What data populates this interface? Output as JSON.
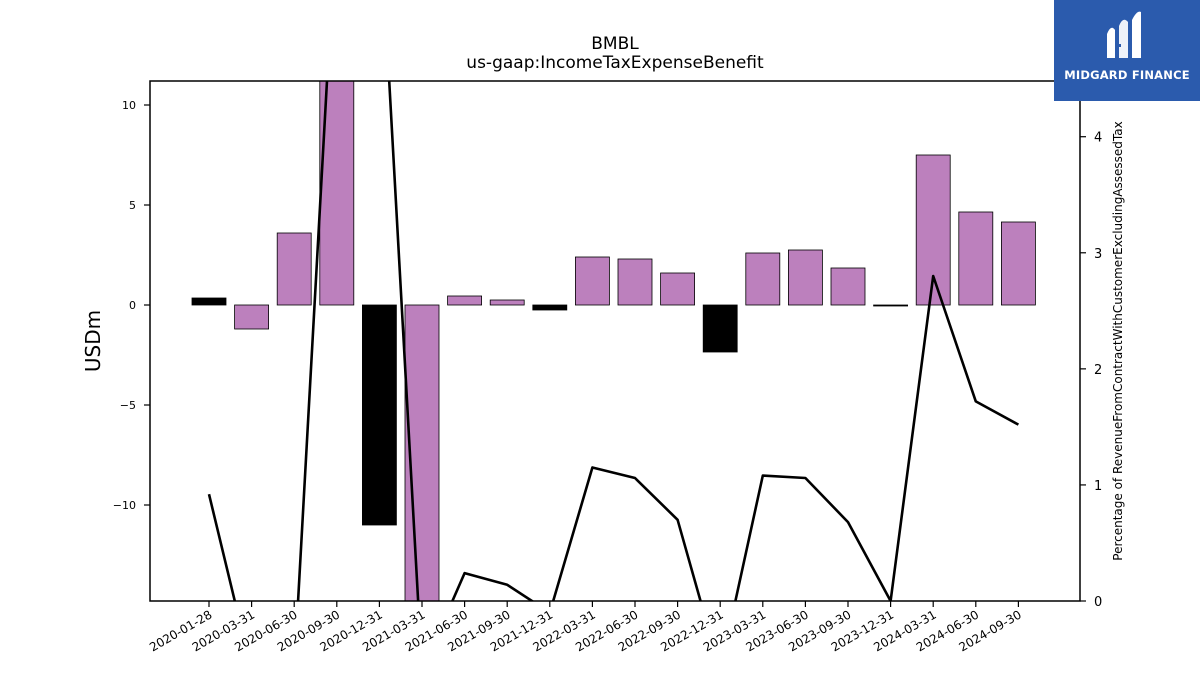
{
  "chart_data": {
    "type": "bar",
    "title": "BMBL",
    "subtitle": "us-gaap:IncomeTaxExpenseBenefit",
    "ylabel": "USDm",
    "y2label": "Percentage of RevenueFromContractWithCustomerExcludingAssessedTax",
    "ylim": [
      -14.8,
      11.2
    ],
    "y2lim": [
      0,
      4.48
    ],
    "yticks": [
      10,
      5,
      0,
      -5,
      -10
    ],
    "ytick_labels": [
      "10",
      "5",
      "0",
      "−5",
      "−10"
    ],
    "y2ticks": [
      0,
      1,
      2,
      3,
      4
    ],
    "categories": [
      "2020-01-28",
      "2020-03-31",
      "2020-06-30",
      "2020-09-30",
      "2020-12-31",
      "2021-03-31",
      "2021-06-30",
      "2021-09-30",
      "2021-12-31",
      "2022-03-31",
      "2022-06-30",
      "2022-09-30",
      "2022-12-31",
      "2023-03-31",
      "2023-06-30",
      "2023-09-30",
      "2023-12-31",
      "2024-03-31",
      "2024-06-30",
      "2024-09-30"
    ],
    "series": [
      {
        "type": "bar",
        "values": [
          0.35,
          -1.2,
          3.6,
          11.5,
          -11.0,
          -15.0,
          0.45,
          0.25,
          -0.25,
          2.4,
          2.3,
          1.6,
          -2.35,
          2.6,
          2.75,
          1.85,
          -0.05,
          7.5,
          4.65,
          4.15
        ],
        "colors": [
          "#000000",
          "#bc80bd",
          "#bc80bd",
          "#bc80bd",
          "#000000",
          "#bc80bd",
          "#bc80bd",
          "#bc80bd",
          "#000000",
          "#bc80bd",
          "#bc80bd",
          "#bc80bd",
          "#000000",
          "#bc80bd",
          "#bc80bd",
          "#bc80bd",
          "#000000",
          "#bc80bd",
          "#bc80bd",
          "#bc80bd"
        ]
      },
      {
        "type": "line",
        "axis": "secondary",
        "color": "#000000",
        "values": [
          0.92,
          -0.6,
          -0.6,
          6.0,
          6.0,
          -0.6,
          0.24,
          0.14,
          -0.1,
          1.15,
          1.06,
          0.7,
          -0.6,
          1.08,
          1.06,
          0.68,
          0.0,
          2.8,
          1.72,
          1.52
        ]
      }
    ]
  },
  "logo": {
    "text": "MIDGARD FINANCE",
    "bg_color": "#2b5bad"
  }
}
